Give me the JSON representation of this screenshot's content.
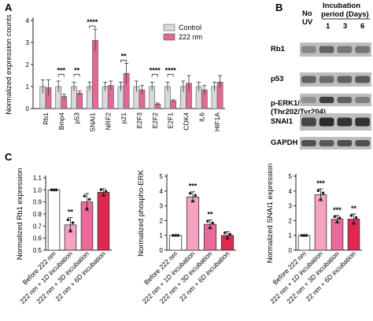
{
  "panels": {
    "a": "A",
    "b": "B",
    "c": "C"
  },
  "colors": {
    "control": "#d9d9d9",
    "treated": "#e0699a",
    "before": "#ffffff",
    "d1": "#f4a3c3",
    "d3": "#ec6a9b",
    "d6": "#e0284f",
    "axis": "#222222"
  },
  "chart_data": [
    {
      "type": "bar",
      "ylabel": "Normalized expression counts",
      "ylim": [
        0,
        4
      ],
      "yticks": [
        "0",
        "1",
        "2",
        "3",
        "4"
      ],
      "legend_position": "top-right",
      "categories": [
        "Rb1",
        "Bmp4",
        "p53",
        "SNAI1",
        "NRF2",
        "p21",
        "E2F3",
        "E2F2",
        "E2F1",
        "CDK4",
        "IL6",
        "HIF1A"
      ],
      "series": [
        {
          "name": "Control",
          "values": [
            1,
            1,
            1,
            1,
            1,
            1,
            1,
            1,
            1,
            1,
            1,
            1
          ],
          "errors": [
            0.3,
            0.25,
            0.2,
            0.2,
            0.2,
            0.2,
            0.25,
            0.2,
            0.2,
            0.25,
            0.2,
            0.2
          ]
        },
        {
          "name": "222 nm",
          "values": [
            0.95,
            0.55,
            0.7,
            3.1,
            1.05,
            1.6,
            0.85,
            0.2,
            0.35,
            1.15,
            0.85,
            1.2
          ],
          "errors": [
            0.35,
            0.1,
            0.1,
            0.5,
            0.2,
            0.45,
            0.2,
            0.05,
            0.05,
            0.35,
            0.2,
            0.3
          ]
        }
      ],
      "significance": [
        {
          "from": 1,
          "to": 1,
          "label": "***",
          "y": 1.55
        },
        {
          "from": 2,
          "to": 2,
          "label": "**",
          "y": 1.55
        },
        {
          "from": 3,
          "to": 3,
          "label": "****",
          "y": 3.75
        },
        {
          "from": 5,
          "to": 5,
          "label": "**",
          "y": 2.2
        },
        {
          "from": 7,
          "to": 7,
          "label": "****",
          "y": 1.55
        },
        {
          "from": 8,
          "to": 8,
          "label": "****",
          "y": 1.55
        }
      ]
    },
    {
      "type": "bar",
      "ylabel": "Normalized Rb1 expression",
      "ylim": [
        0.5,
        1.1
      ],
      "yticks": [
        "0.5",
        "0.6",
        "0.7",
        "0.8",
        "0.9",
        "1.0",
        "1.1"
      ],
      "categories": [
        "Before 222 nm",
        "222 nm + 1D incubation",
        "222 nm + 3D incubation",
        "22 nm + 6D incubation"
      ],
      "values": [
        1.0,
        0.71,
        0.9,
        0.98
      ],
      "errors": [
        0.0,
        0.06,
        0.07,
        0.03
      ],
      "significance": [
        "",
        "**",
        "",
        ""
      ]
    },
    {
      "type": "bar",
      "ylabel": "Normalized phospho-ERK",
      "ylim": [
        0,
        5
      ],
      "yticks": [
        "0",
        "1",
        "2",
        "3",
        "4",
        "5"
      ],
      "categories": [
        "Before 222 nm",
        "222 nm + 1D incubation",
        "222 nm + 3D incubation",
        "22 nm + 6D incubation"
      ],
      "values": [
        1.0,
        3.6,
        1.75,
        1.0
      ],
      "errors": [
        0.0,
        0.35,
        0.3,
        0.25
      ],
      "significance": [
        "",
        "***",
        "**",
        ""
      ]
    },
    {
      "type": "bar",
      "ylabel": "Normalized SNAI1 expression",
      "ylim": [
        0,
        5
      ],
      "yticks": [
        "0",
        "1",
        "2",
        "3",
        "4",
        "5"
      ],
      "categories": [
        "Before 222 nm",
        "222 nm + 1D incubation",
        "222 nm + 3D incubation",
        "22 nm + 6D incubation"
      ],
      "values": [
        1.0,
        3.75,
        2.1,
        2.1
      ],
      "errors": [
        0.0,
        0.4,
        0.25,
        0.35
      ],
      "significance": [
        "",
        "***",
        "***",
        "**"
      ]
    }
  ],
  "blot": {
    "no_uv": [
      "No",
      "UV"
    ],
    "incubation": [
      "Incubation",
      "period (Days)"
    ],
    "days": [
      "1",
      "3",
      "6"
    ],
    "rows": [
      "Rb1",
      "p53",
      "p-ERK1/2",
      "(Thr202/Tyr204)",
      "SNAI1",
      "GAPDH"
    ]
  }
}
